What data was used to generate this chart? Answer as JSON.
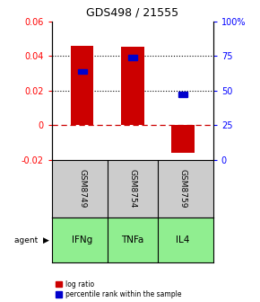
{
  "title": "GDS498 / 21555",
  "samples": [
    "GSM8749",
    "GSM8754",
    "GSM8759"
  ],
  "agents": [
    "IFNg",
    "TNFa",
    "IL4"
  ],
  "bar_values": [
    0.046,
    0.045,
    -0.016
  ],
  "percentile_values": [
    0.031,
    0.039,
    0.018
  ],
  "bar_color": "#cc0000",
  "percentile_color": "#0000cc",
  "agent_bg_color": "#90ee90",
  "sample_bg_color": "#cccccc",
  "ylim_left": [
    -0.02,
    0.06
  ],
  "ylim_right": [
    0,
    100
  ],
  "yticks_left": [
    -0.02,
    0.0,
    0.02,
    0.04,
    0.06
  ],
  "yticks_right": [
    0,
    25,
    50,
    75,
    100
  ],
  "ytick_labels_left": [
    "-0.02",
    "0",
    "0.02",
    "0.04",
    "0.06"
  ],
  "ytick_labels_right": [
    "0",
    "25",
    "50",
    "75",
    "100%"
  ],
  "grid_values": [
    0.02,
    0.04
  ],
  "zero_line": 0.0,
  "bar_width": 0.45
}
